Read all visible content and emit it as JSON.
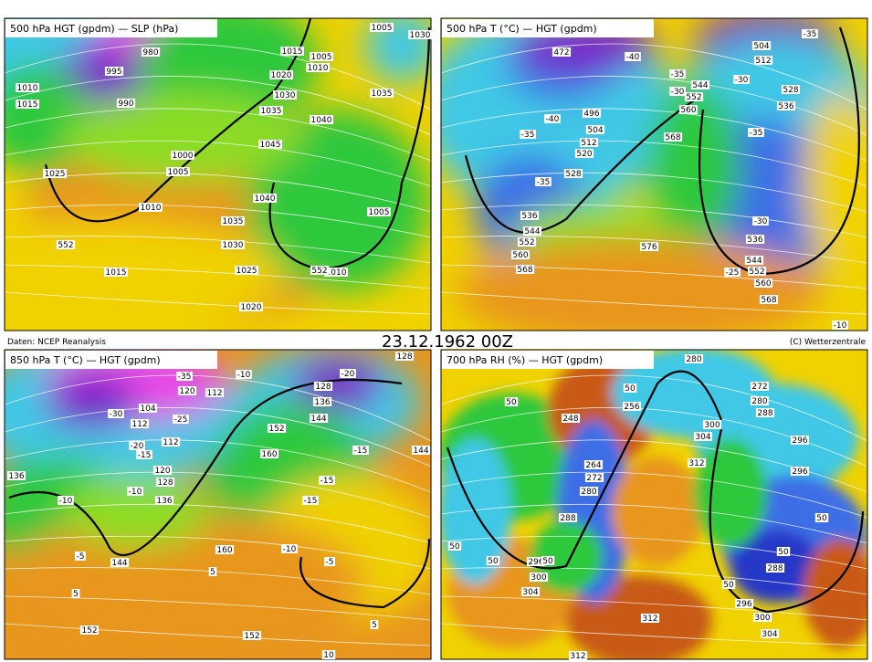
{
  "header": {
    "date": "23.12.1962 00Z",
    "source": "Daten: NCEP Reanalysis",
    "copyright": "(C) Wetterzentrale"
  },
  "panels": [
    {
      "title": "500 hPa HGT (gpdm) — SLP (hPa)",
      "labels": [
        "1010",
        "1015",
        "1025",
        "1005",
        "1010",
        "552",
        "1015",
        "1035",
        "1030",
        "1025",
        "1020",
        "1040",
        "1045",
        "1035",
        "1040",
        "1035",
        "1005",
        "1010",
        "552",
        "1015",
        "1005",
        "1010",
        "1020",
        "1030",
        "1000",
        "995",
        "990",
        "980",
        "1030",
        "1005"
      ]
    },
    {
      "title": "500 hPa T (°C) — HGT (gpdm)",
      "labels": [
        "472",
        "-40",
        "-35",
        "-40",
        "496",
        "504",
        "512",
        "520",
        "528",
        "-35",
        "536",
        "544",
        "552",
        "560",
        "568",
        "576",
        "568",
        "560",
        "552",
        "544",
        "-35",
        "-30",
        "504",
        "512",
        "-35",
        "-30",
        "528",
        "536",
        "-35",
        "-30",
        "536",
        "544",
        "552",
        "560",
        "568",
        "-10",
        "-25"
      ]
    },
    {
      "title": "850 hPa T (°C) — HGT (gpdm)",
      "labels": [
        "104",
        "120",
        "-35",
        "112",
        "-30",
        "112",
        "-25",
        "-20",
        "112",
        "-15",
        "120",
        "128",
        "-10",
        "136",
        "-10",
        "136",
        "-5",
        "144",
        "5",
        "152",
        "160",
        "152",
        "5",
        "-10",
        "-20",
        "128",
        "136",
        "144",
        "152",
        "160",
        "-15",
        "-15",
        "-15",
        "-10",
        "-5",
        "144",
        "128",
        "5",
        "10"
      ]
    },
    {
      "title": "700 hPa RH (%) — HGT (gpdm)",
      "labels": [
        "280",
        "272",
        "280",
        "288",
        "296",
        "296",
        "248",
        "256",
        "264",
        "272",
        "280",
        "288",
        "296",
        "300",
        "304",
        "312",
        "312",
        "300",
        "304",
        "312",
        "288",
        "296",
        "300",
        "304",
        "50",
        "50",
        "50",
        "50",
        "50",
        "50",
        "50",
        "50"
      ]
    }
  ]
}
